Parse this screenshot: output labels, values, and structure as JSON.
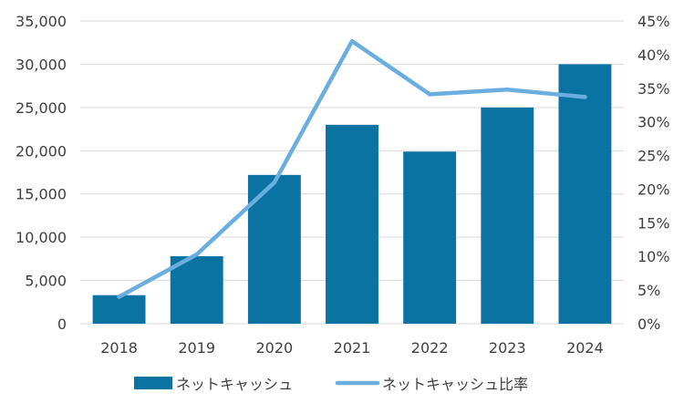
{
  "chart_data": {
    "type": "bar",
    "categories": [
      "2018",
      "2019",
      "2020",
      "2021",
      "2022",
      "2023",
      "2024"
    ],
    "series": [
      {
        "name": "ネットキャッシュ",
        "type": "bar",
        "axis": "left",
        "color": "#0b73a2",
        "values": [
          3300,
          7800,
          17200,
          23000,
          19900,
          25000,
          30000
        ]
      },
      {
        "name": "ネットキャッシュ比率",
        "type": "line",
        "axis": "right",
        "color": "#6aaedf",
        "values": [
          0.04,
          0.103,
          0.21,
          0.42,
          0.341,
          0.348,
          0.337
        ]
      }
    ],
    "ylim_left": [
      0,
      35000
    ],
    "yticks_left": [
      "0",
      "5,000",
      "10,000",
      "15,000",
      "20,000",
      "25,000",
      "30,000",
      "35,000"
    ],
    "ylim_right": [
      0,
      0.45
    ],
    "yticks_right": [
      "0%",
      "5%",
      "10%",
      "15%",
      "20%",
      "25%",
      "30%",
      "35%",
      "40%",
      "45%"
    ],
    "grid": true,
    "legend_position": "bottom"
  }
}
